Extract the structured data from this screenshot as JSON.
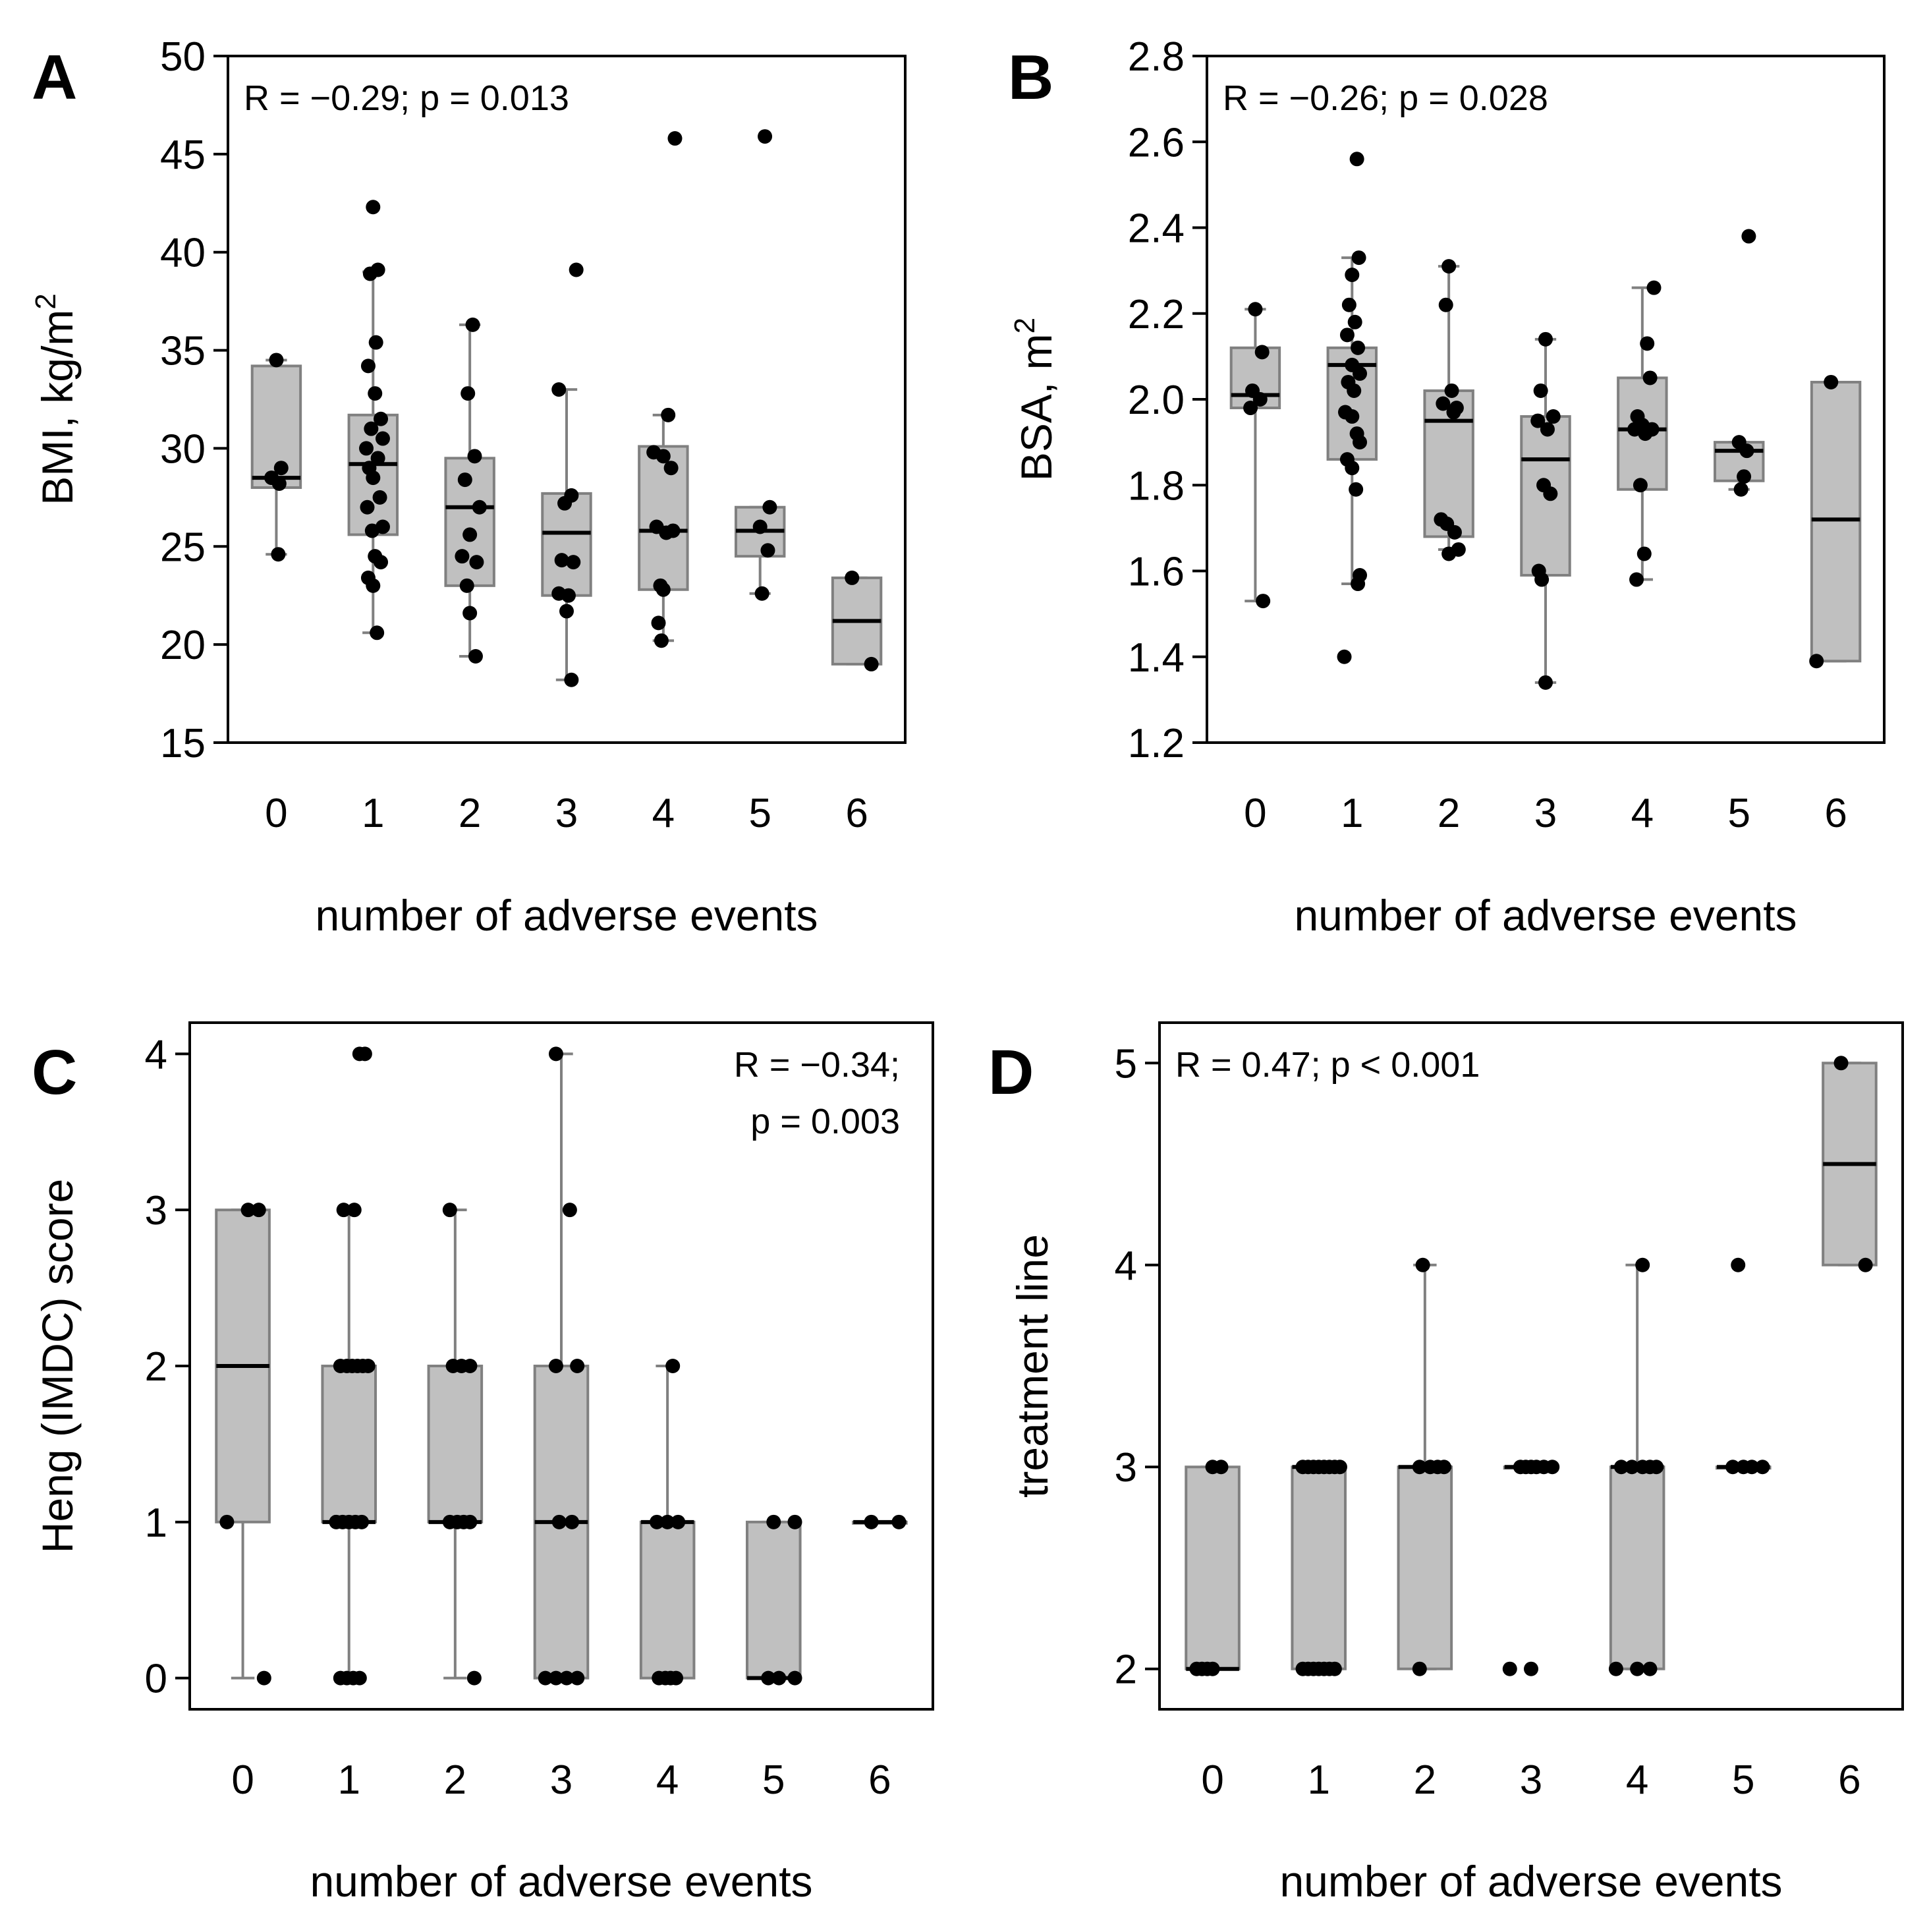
{
  "chart_data": [
    {
      "panel": "A",
      "type": "box",
      "xlabel": "number of adverse events",
      "ylabel": "BMI, kg/m",
      "ylabel_sup": "2",
      "ylim": [
        15,
        50
      ],
      "yticks": [
        15,
        20,
        25,
        30,
        35,
        40,
        45,
        50
      ],
      "categories": [
        "0",
        "1",
        "2",
        "3",
        "4",
        "5",
        "6"
      ],
      "annotation": [
        "R = −0.29; p = 0.013"
      ],
      "annotation_align": "left",
      "boxes": [
        {
          "min": 24.6,
          "q1": 28.0,
          "median": 28.5,
          "q3": 34.2,
          "max": 34.5
        },
        {
          "min": 20.6,
          "q1": 25.6,
          "median": 29.2,
          "q3": 31.7,
          "max": 39.0
        },
        {
          "min": 19.4,
          "q1": 23.0,
          "median": 27.0,
          "q3": 29.5,
          "max": 36.3
        },
        {
          "min": 18.2,
          "q1": 22.5,
          "median": 25.7,
          "q3": 27.7,
          "max": 33.0
        },
        {
          "min": 20.2,
          "q1": 22.8,
          "median": 25.8,
          "q3": 30.1,
          "max": 31.7
        },
        {
          "min": 22.6,
          "q1": 24.5,
          "median": 25.8,
          "q3": 27.0,
          "max": 27.0
        },
        {
          "min": 19.0,
          "q1": 19.0,
          "median": 21.2,
          "q3": 23.4,
          "max": 23.4
        }
      ],
      "points": [
        [
          0.0,
          34.5
        ],
        [
          -0.05,
          28.5
        ],
        [
          0.05,
          29.0
        ],
        [
          0.03,
          28.2
        ],
        [
          0.02,
          24.6
        ],
        [
          1.0,
          42.3
        ],
        [
          0.97,
          38.9
        ],
        [
          1.05,
          39.1
        ],
        [
          1.03,
          35.4
        ],
        [
          0.95,
          34.2
        ],
        [
          1.02,
          32.8
        ],
        [
          1.08,
          31.5
        ],
        [
          0.98,
          31.0
        ],
        [
          0.93,
          30.0
        ],
        [
          1.1,
          30.5
        ],
        [
          1.05,
          29.5
        ],
        [
          0.96,
          29.0
        ],
        [
          1.0,
          28.5
        ],
        [
          1.07,
          27.5
        ],
        [
          0.94,
          27.0
        ],
        [
          1.1,
          26.0
        ],
        [
          0.99,
          25.8
        ],
        [
          1.02,
          24.5
        ],
        [
          1.08,
          24.2
        ],
        [
          0.95,
          23.4
        ],
        [
          1.0,
          23.0
        ],
        [
          1.04,
          20.6
        ],
        [
          2.03,
          36.3
        ],
        [
          1.98,
          32.8
        ],
        [
          2.05,
          29.6
        ],
        [
          1.95,
          28.4
        ],
        [
          2.1,
          27.0
        ],
        [
          2.0,
          25.6
        ],
        [
          1.92,
          24.5
        ],
        [
          2.07,
          24.2
        ],
        [
          1.97,
          23.0
        ],
        [
          2.0,
          21.6
        ],
        [
          2.06,
          19.4
        ],
        [
          3.1,
          39.1
        ],
        [
          2.92,
          33.0
        ],
        [
          3.05,
          27.6
        ],
        [
          2.98,
          27.2
        ],
        [
          2.95,
          24.3
        ],
        [
          3.07,
          24.2
        ],
        [
          2.92,
          22.6
        ],
        [
          3.02,
          22.5
        ],
        [
          3.0,
          21.7
        ],
        [
          3.05,
          18.2
        ],
        [
          4.12,
          45.8
        ],
        [
          4.05,
          31.7
        ],
        [
          3.9,
          29.8
        ],
        [
          4.0,
          29.6
        ],
        [
          4.08,
          29.0
        ],
        [
          3.93,
          26.0
        ],
        [
          4.03,
          25.7
        ],
        [
          4.1,
          25.8
        ],
        [
          3.97,
          23.0
        ],
        [
          4.0,
          22.8
        ],
        [
          3.95,
          21.1
        ],
        [
          3.98,
          20.2
        ],
        [
          5.05,
          45.9
        ],
        [
          5.1,
          27.0
        ],
        [
          5.0,
          26.0
        ],
        [
          5.08,
          24.8
        ],
        [
          5.02,
          22.6
        ],
        [
          5.95,
          23.4
        ],
        [
          6.15,
          19.0
        ]
      ]
    },
    {
      "panel": "B",
      "type": "box",
      "xlabel": "number of adverse events",
      "ylabel": "BSA, m",
      "ylabel_sup": "2",
      "ylim": [
        1.2,
        2.8
      ],
      "yticks": [
        "1.2",
        "1.4",
        "1.6",
        "1.8",
        "2.0",
        "2.2",
        "2.4",
        "2.6",
        "2.8"
      ],
      "categories": [
        "0",
        "1",
        "2",
        "3",
        "4",
        "5",
        "6"
      ],
      "annotation": [
        "R = −0.26; p = 0.028"
      ],
      "annotation_align": "left",
      "boxes": [
        {
          "min": 1.53,
          "q1": 1.98,
          "median": 2.01,
          "q3": 2.12,
          "max": 2.21
        },
        {
          "min": 1.57,
          "q1": 1.86,
          "median": 2.08,
          "q3": 2.12,
          "max": 2.33
        },
        {
          "min": 1.65,
          "q1": 1.68,
          "median": 1.95,
          "q3": 2.02,
          "max": 2.31
        },
        {
          "min": 1.34,
          "q1": 1.59,
          "median": 1.86,
          "q3": 1.96,
          "max": 2.14
        },
        {
          "min": 1.58,
          "q1": 1.79,
          "median": 1.93,
          "q3": 2.05,
          "max": 2.26
        },
        {
          "min": 1.79,
          "q1": 1.81,
          "median": 1.88,
          "q3": 1.9,
          "max": 1.9
        },
        {
          "min": 1.39,
          "q1": 1.39,
          "median": 1.72,
          "q3": 2.04,
          "max": 2.04
        }
      ],
      "points": [
        [
          0.0,
          2.21
        ],
        [
          0.07,
          2.11
        ],
        [
          -0.03,
          2.02
        ],
        [
          0.05,
          2.0
        ],
        [
          -0.05,
          1.98
        ],
        [
          0.08,
          1.53
        ],
        [
          1.05,
          2.56
        ],
        [
          1.07,
          2.33
        ],
        [
          1.0,
          2.29
        ],
        [
          0.97,
          2.22
        ],
        [
          1.03,
          2.18
        ],
        [
          0.95,
          2.15
        ],
        [
          1.06,
          2.12
        ],
        [
          1.0,
          2.08
        ],
        [
          1.08,
          2.06
        ],
        [
          0.96,
          2.04
        ],
        [
          1.02,
          2.02
        ],
        [
          0.93,
          1.97
        ],
        [
          1.0,
          1.96
        ],
        [
          1.05,
          1.92
        ],
        [
          1.08,
          1.9
        ],
        [
          0.95,
          1.86
        ],
        [
          1.0,
          1.84
        ],
        [
          1.04,
          1.79
        ],
        [
          1.08,
          1.59
        ],
        [
          1.06,
          1.57
        ],
        [
          0.92,
          1.4
        ],
        [
          2.0,
          2.31
        ],
        [
          1.97,
          2.22
        ],
        [
          2.03,
          2.02
        ],
        [
          1.94,
          1.99
        ],
        [
          2.08,
          1.98
        ],
        [
          2.05,
          1.97
        ],
        [
          1.92,
          1.72
        ],
        [
          1.98,
          1.71
        ],
        [
          2.06,
          1.69
        ],
        [
          2.1,
          1.65
        ],
        [
          2.0,
          1.64
        ],
        [
          3.0,
          2.14
        ],
        [
          2.95,
          2.02
        ],
        [
          3.08,
          1.96
        ],
        [
          2.92,
          1.95
        ],
        [
          3.02,
          1.93
        ],
        [
          2.98,
          1.8
        ],
        [
          3.05,
          1.78
        ],
        [
          2.93,
          1.6
        ],
        [
          2.96,
          1.58
        ],
        [
          3.0,
          1.34
        ],
        [
          4.12,
          2.26
        ],
        [
          4.05,
          2.13
        ],
        [
          4.08,
          2.05
        ],
        [
          3.95,
          1.96
        ],
        [
          4.0,
          1.94
        ],
        [
          3.92,
          1.93
        ],
        [
          4.03,
          1.92
        ],
        [
          4.1,
          1.93
        ],
        [
          3.98,
          1.8
        ],
        [
          4.02,
          1.64
        ],
        [
          3.94,
          1.58
        ],
        [
          5.1,
          2.38
        ],
        [
          5.0,
          1.9
        ],
        [
          5.08,
          1.88
        ],
        [
          5.05,
          1.82
        ],
        [
          5.02,
          1.79
        ],
        [
          5.95,
          2.04
        ],
        [
          5.8,
          1.39
        ]
      ]
    },
    {
      "panel": "C",
      "type": "box",
      "xlabel": "number of adverse events",
      "ylabel": "Heng (IMDC) score",
      "ylim": [
        -0.2,
        4.2
      ],
      "yticks": [
        0,
        1,
        2,
        3,
        4
      ],
      "categories": [
        "0",
        "1",
        "2",
        "3",
        "4",
        "5",
        "6"
      ],
      "annotation": [
        "R = −0.34;",
        "p = 0.003"
      ],
      "annotation_align": "right",
      "boxes": [
        {
          "min": 0,
          "q1": 1,
          "median": 2,
          "q3": 3,
          "max": 3
        },
        {
          "min": 0,
          "q1": 1,
          "median": 1,
          "q3": 2,
          "max": 3
        },
        {
          "min": 0,
          "q1": 1,
          "median": 1,
          "q3": 2,
          "max": 3
        },
        {
          "min": 0,
          "q1": 0,
          "median": 1,
          "q3": 2,
          "max": 4
        },
        {
          "min": 0,
          "q1": 0,
          "median": 1,
          "q3": 1,
          "max": 2
        },
        {
          "min": 0,
          "q1": 0,
          "median": 0,
          "q3": 1,
          "max": 1
        },
        {
          "min": 1,
          "q1": 1,
          "median": 1,
          "q3": 1,
          "max": 1
        }
      ],
      "points": [
        [
          0.05,
          3
        ],
        [
          0.15,
          3
        ],
        [
          -0.15,
          1
        ],
        [
          0.2,
          0
        ],
        [
          1.1,
          4
        ],
        [
          1.15,
          4
        ],
        [
          0.95,
          3
        ],
        [
          1.05,
          3
        ],
        [
          0.92,
          2
        ],
        [
          0.98,
          2
        ],
        [
          1.03,
          2
        ],
        [
          1.08,
          2
        ],
        [
          1.13,
          2
        ],
        [
          1.18,
          2
        ],
        [
          0.88,
          1
        ],
        [
          0.94,
          1
        ],
        [
          1.0,
          1
        ],
        [
          1.06,
          1
        ],
        [
          1.12,
          1
        ],
        [
          0.92,
          0
        ],
        [
          0.98,
          0
        ],
        [
          1.04,
          0
        ],
        [
          1.1,
          0
        ],
        [
          1.95,
          3
        ],
        [
          1.98,
          2
        ],
        [
          2.06,
          2
        ],
        [
          2.14,
          2
        ],
        [
          1.95,
          1
        ],
        [
          2.02,
          1
        ],
        [
          2.08,
          1
        ],
        [
          2.14,
          1
        ],
        [
          2.18,
          0
        ],
        [
          2.95,
          4
        ],
        [
          3.08,
          3
        ],
        [
          3.15,
          2
        ],
        [
          2.95,
          2
        ],
        [
          2.98,
          1
        ],
        [
          3.1,
          1
        ],
        [
          2.85,
          0
        ],
        [
          2.95,
          0
        ],
        [
          3.05,
          0
        ],
        [
          3.15,
          0
        ],
        [
          4.05,
          2
        ],
        [
          3.9,
          1
        ],
        [
          4.0,
          1
        ],
        [
          4.1,
          1
        ],
        [
          3.92,
          0
        ],
        [
          3.98,
          0
        ],
        [
          4.03,
          0
        ],
        [
          4.08,
          0
        ],
        [
          5.0,
          1
        ],
        [
          5.2,
          1
        ],
        [
          4.95,
          0
        ],
        [
          5.05,
          0
        ],
        [
          5.2,
          0
        ],
        [
          5.92,
          1
        ],
        [
          6.18,
          1
        ]
      ]
    },
    {
      "panel": "D",
      "type": "box",
      "xlabel": "number of adverse events",
      "ylabel": "treatment line",
      "ylim": [
        1.8,
        5.2
      ],
      "yticks": [
        2,
        3,
        4,
        5
      ],
      "categories": [
        "0",
        "1",
        "2",
        "3",
        "4",
        "5",
        "6"
      ],
      "annotation": [
        "R = 0.47; p < 0.001"
      ],
      "annotation_align": "left",
      "boxes": [
        {
          "min": 2,
          "q1": 2,
          "median": 2,
          "q3": 3,
          "max": 3
        },
        {
          "min": 2,
          "q1": 2,
          "median": 3,
          "q3": 3,
          "max": 3
        },
        {
          "min": 2,
          "q1": 2,
          "median": 3,
          "q3": 3,
          "max": 4
        },
        {
          "min": 3,
          "q1": 3,
          "median": 3,
          "q3": 3,
          "max": 3
        },
        {
          "min": 2,
          "q1": 2,
          "median": 3,
          "q3": 3,
          "max": 4
        },
        {
          "min": 3,
          "q1": 3,
          "median": 3,
          "q3": 3,
          "max": 3
        },
        {
          "min": 4,
          "q1": 4,
          "median": 4.5,
          "q3": 5,
          "max": 5
        }
      ],
      "points": [
        [
          0.0,
          3
        ],
        [
          0.08,
          3
        ],
        [
          -0.15,
          2
        ],
        [
          -0.1,
          2
        ],
        [
          -0.05,
          2
        ],
        [
          0.0,
          2
        ],
        [
          0.85,
          3
        ],
        [
          0.9,
          3
        ],
        [
          0.95,
          3
        ],
        [
          1.0,
          3
        ],
        [
          1.05,
          3
        ],
        [
          1.1,
          3
        ],
        [
          1.15,
          3
        ],
        [
          1.2,
          3
        ],
        [
          0.85,
          2
        ],
        [
          0.9,
          2
        ],
        [
          0.95,
          2
        ],
        [
          1.0,
          2
        ],
        [
          1.05,
          2
        ],
        [
          1.1,
          2
        ],
        [
          1.15,
          2
        ],
        [
          1.98,
          4
        ],
        [
          1.95,
          3
        ],
        [
          2.05,
          3
        ],
        [
          2.12,
          3
        ],
        [
          2.18,
          3
        ],
        [
          1.95,
          2
        ],
        [
          2.9,
          3
        ],
        [
          2.95,
          3
        ],
        [
          3.0,
          3
        ],
        [
          3.05,
          3
        ],
        [
          3.12,
          3
        ],
        [
          3.2,
          3
        ],
        [
          2.8,
          2
        ],
        [
          3.0,
          2
        ],
        [
          4.05,
          4
        ],
        [
          3.85,
          3
        ],
        [
          3.95,
          3
        ],
        [
          4.05,
          3
        ],
        [
          4.12,
          3
        ],
        [
          4.18,
          3
        ],
        [
          3.8,
          2
        ],
        [
          4.0,
          2
        ],
        [
          4.12,
          2
        ],
        [
          4.95,
          4
        ],
        [
          4.9,
          3
        ],
        [
          5.0,
          3
        ],
        [
          5.08,
          3
        ],
        [
          5.18,
          3
        ],
        [
          5.92,
          5
        ],
        [
          6.15,
          4
        ]
      ]
    }
  ],
  "layout_panels": "2x2"
}
